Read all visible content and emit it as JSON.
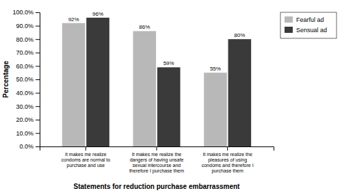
{
  "chart_data": {
    "type": "bar",
    "categories": [
      "It makes me realize\ncondoms are normal to\npurchase and use",
      "It makes me realize the\ndangers of having unsafe\nsexual intercourse and\ntherefore I purchase them",
      "It makes me realize the\npleasures of using\ncondoms and therefore I\npurchase them"
    ],
    "series": [
      {
        "name": "Fearful ad",
        "color": "#b8b8b8",
        "values": [
          92,
          86,
          55
        ],
        "value_labels": [
          "92%",
          "86%",
          "55%"
        ]
      },
      {
        "name": "Sensual ad",
        "color": "#3a3a3a",
        "values": [
          96,
          59,
          80
        ],
        "value_labels": [
          "96%",
          "59%",
          "80%"
        ]
      }
    ],
    "xlabel": "Statements for reduction purchase embarrassment",
    "ylabel": "Percentage",
    "ylim": [
      0,
      100
    ],
    "yticks": [
      {
        "value": 0,
        "label": "0.0%"
      },
      {
        "value": 10,
        "label": "10.0%"
      },
      {
        "value": 20,
        "label": "20.0%"
      },
      {
        "value": 30,
        "label": "30.0%"
      },
      {
        "value": 40,
        "label": "40.0%"
      },
      {
        "value": 50,
        "label": "50.0%"
      },
      {
        "value": 60,
        "label": "60.0%"
      },
      {
        "value": 70,
        "label": "70.0%"
      },
      {
        "value": 80,
        "label": "80.0%"
      },
      {
        "value": 90,
        "label": "90.0%"
      },
      {
        "value": 100,
        "label": "100.0%"
      }
    ],
    "data_labels": true,
    "legend": "right",
    "grid": false
  }
}
